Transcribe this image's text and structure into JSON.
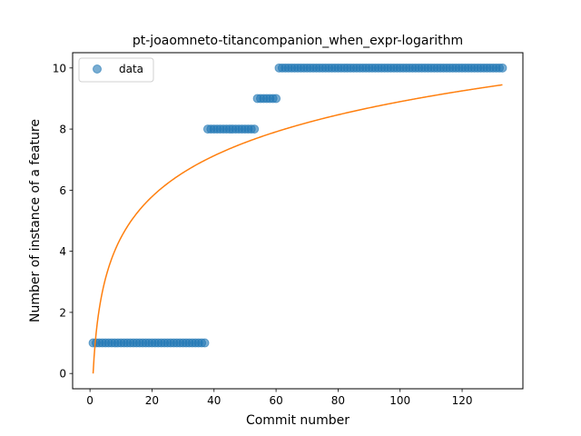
{
  "chart_data": {
    "type": "scatter",
    "title": "pt-joaomneto-titancompanion_when_expr-logarithm",
    "xlabel": "Commit number",
    "ylabel": "Number of instance of a feature",
    "xlim": [
      -5.6,
      139.6
    ],
    "ylim": [
      -0.5,
      10.5
    ],
    "xticks": [
      0,
      20,
      40,
      60,
      80,
      100,
      120
    ],
    "yticks": [
      0,
      2,
      4,
      6,
      8,
      10
    ],
    "grid": false,
    "legend": {
      "placement": "top-left",
      "entries": [
        "data"
      ]
    },
    "colors": {
      "data": "#1f77b4",
      "fit": "#ff7f0e"
    },
    "series": [
      {
        "name": "data",
        "kind": "scatter",
        "segments": [
          {
            "x_from": 1,
            "x_to": 37,
            "y": 1
          },
          {
            "x_from": 38,
            "x_to": 53,
            "y": 8
          },
          {
            "x_from": 54,
            "x_to": 60,
            "y": 9
          },
          {
            "x_from": 61,
            "x_to": 133,
            "y": 10
          }
        ]
      },
      {
        "kind": "line",
        "model": "logarithmic",
        "x_range": [
          1,
          133
        ],
        "a": 0,
        "b": 1.932
      }
    ]
  }
}
